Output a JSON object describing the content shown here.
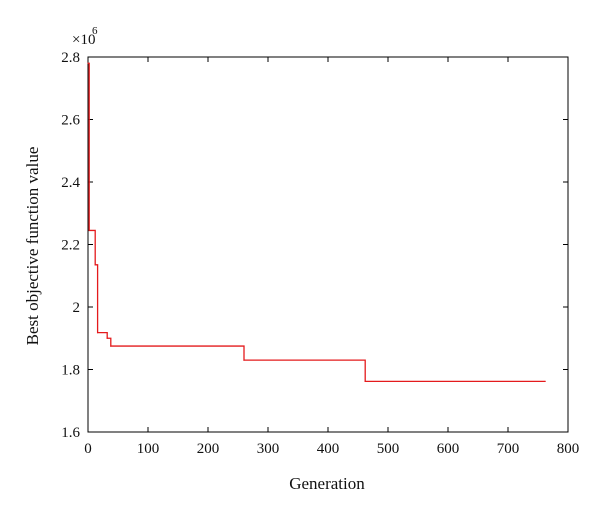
{
  "chart_data": {
    "type": "line",
    "title": "",
    "xlabel": "Generation",
    "ylabel": "Best objective function value",
    "y_multiplier": {
      "base": "×10",
      "exponent": "6"
    },
    "xlim": [
      0,
      800
    ],
    "ylim": [
      1.6,
      2.8
    ],
    "xticks": [
      0,
      100,
      200,
      300,
      400,
      500,
      600,
      700,
      800
    ],
    "xtick_labels": [
      "0",
      "100",
      "200",
      "300",
      "400",
      "500",
      "600",
      "700",
      "800"
    ],
    "yticks": [
      1.6,
      1.8,
      2.0,
      2.2,
      2.4,
      2.6,
      2.8
    ],
    "ytick_labels": [
      "1.6",
      "1.8",
      "2",
      "2.2",
      "2.4",
      "2.6",
      "2.8"
    ],
    "grid": false,
    "series": [
      {
        "color": "#e41a1c",
        "step": true,
        "x": [
          0,
          2,
          12,
          16,
          32,
          38,
          260,
          462,
          762
        ],
        "y": [
          2.78,
          2.245,
          2.135,
          1.918,
          1.9,
          1.875,
          1.83,
          1.762,
          1.762
        ]
      }
    ]
  }
}
